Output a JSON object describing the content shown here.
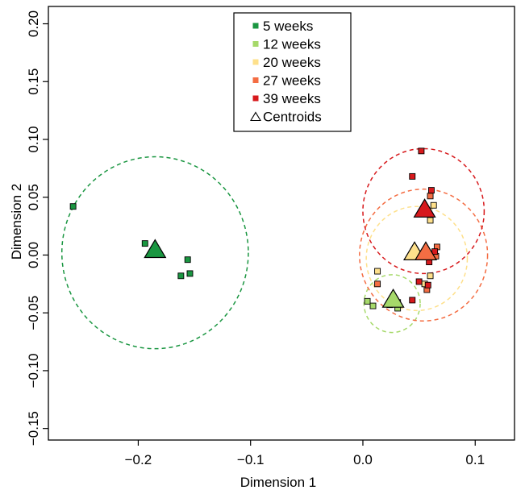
{
  "chart_data": {
    "type": "scatter",
    "title": "",
    "xlabel": "Dimension 1",
    "ylabel": "Dimension 2",
    "xlim": [
      -0.28,
      0.135
    ],
    "ylim": [
      -0.16,
      0.215
    ],
    "x_ticks": [
      -0.2,
      -0.1,
      0.0,
      0.1
    ],
    "x_tick_labels": [
      "−0.2",
      "−0.1",
      "0.0",
      "0.1"
    ],
    "y_ticks": [
      -0.15,
      -0.1,
      -0.05,
      0.0,
      0.05,
      0.1,
      0.15,
      0.2
    ],
    "y_tick_labels": [
      "−0.15",
      "−0.10",
      "−0.05",
      "0.00",
      "0.05",
      "0.10",
      "0.15",
      "0.20"
    ],
    "grid": false,
    "legend_position": "top-center",
    "legend": [
      {
        "label": "5 weeks",
        "marker": "square",
        "color": "#1a9641"
      },
      {
        "label": "12 weeks",
        "marker": "square",
        "color": "#a6d96a"
      },
      {
        "label": "20 weeks",
        "marker": "square",
        "color": "#fee08b"
      },
      {
        "label": "27 weeks",
        "marker": "square",
        "color": "#f46d43"
      },
      {
        "label": "39 weeks",
        "marker": "square",
        "color": "#d7191c"
      },
      {
        "label": "Centroids",
        "marker": "open-triangle",
        "color": "#000000"
      }
    ],
    "series": [
      {
        "name": "5 weeks",
        "color": "#1a9641",
        "points": [
          [
            -0.258,
            0.042
          ],
          [
            -0.194,
            0.01
          ],
          [
            -0.162,
            -0.018
          ],
          [
            -0.156,
            -0.004
          ],
          [
            -0.154,
            -0.016
          ]
        ],
        "centroid": [
          -0.185,
          0.004
        ],
        "ellipse": {
          "center": [
            -0.185,
            0.002
          ],
          "rx": 0.083,
          "ry": 0.083
        }
      },
      {
        "name": "12 weeks",
        "color": "#a6d96a",
        "points": [
          [
            0.004,
            -0.04
          ],
          [
            0.009,
            -0.044
          ],
          [
            0.024,
            -0.043
          ],
          [
            0.031,
            -0.046
          ],
          [
            0.031,
            -0.041
          ]
        ],
        "centroid": [
          0.027,
          -0.039
        ],
        "ellipse": {
          "center": [
            0.026,
            -0.042
          ],
          "rx": 0.025,
          "ry": 0.025
        }
      },
      {
        "name": "20 weeks",
        "color": "#fee08b",
        "points": [
          [
            0.013,
            -0.014
          ],
          [
            0.06,
            0.03
          ],
          [
            0.063,
            0.043
          ],
          [
            0.06,
            -0.018
          ],
          [
            0.055,
            -0.025
          ]
        ],
        "centroid": [
          0.046,
          0.002
        ],
        "ellipse": {
          "center": [
            0.048,
            -0.003
          ],
          "rx": 0.045,
          "ry": 0.045
        }
      },
      {
        "name": "27 weeks",
        "color": "#f46d43",
        "points": [
          [
            0.013,
            -0.025
          ],
          [
            0.057,
            -0.03
          ],
          [
            0.06,
            0.051
          ],
          [
            0.066,
            0.007
          ],
          [
            0.065,
            -0.001
          ]
        ],
        "centroid": [
          0.056,
          0.002
        ],
        "ellipse": {
          "center": [
            0.054,
            0.0
          ],
          "rx": 0.057,
          "ry": 0.057
        }
      },
      {
        "name": "39 weeks",
        "color": "#d7191c",
        "points": [
          [
            0.052,
            0.09
          ],
          [
            0.044,
            0.068
          ],
          [
            0.061,
            0.056
          ],
          [
            0.059,
            -0.006
          ],
          [
            0.05,
            -0.023
          ],
          [
            0.044,
            -0.039
          ],
          [
            0.064,
            0.003
          ],
          [
            0.058,
            -0.026
          ]
        ],
        "centroid": [
          0.055,
          0.039
        ],
        "ellipse": {
          "center": [
            0.054,
            0.038
          ],
          "rx": 0.054,
          "ry": 0.054
        }
      }
    ]
  }
}
